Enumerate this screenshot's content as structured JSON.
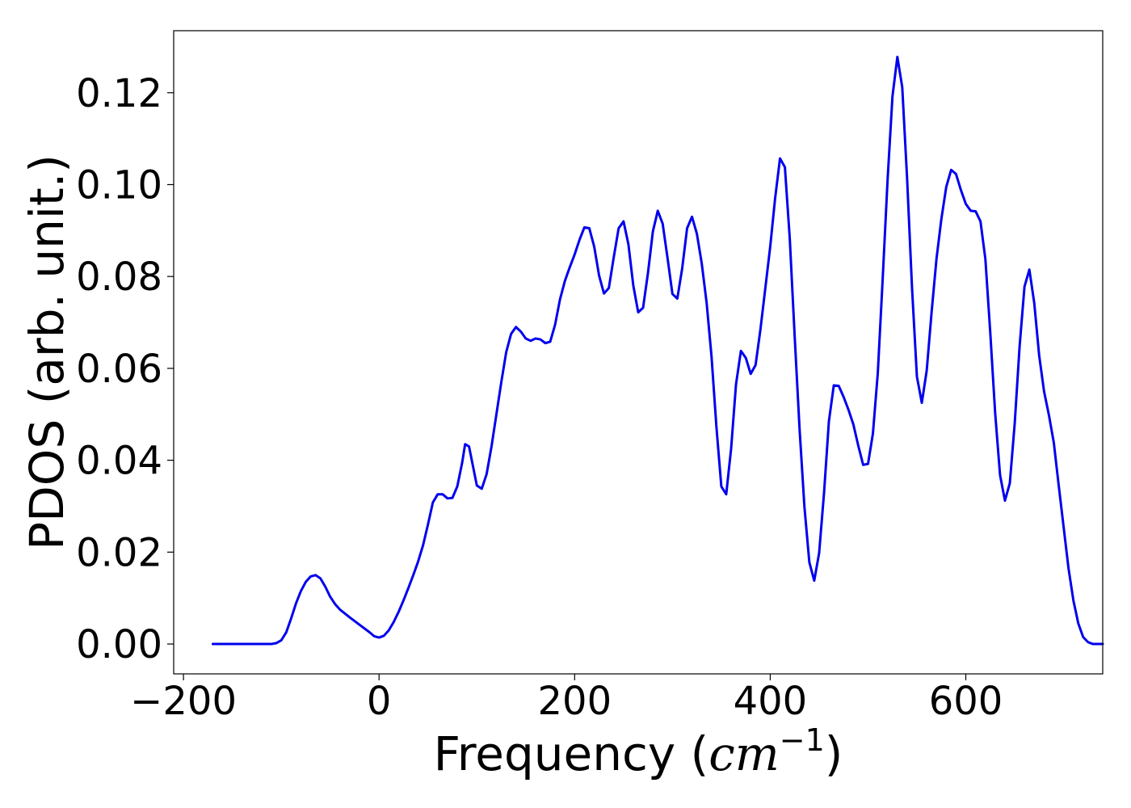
{
  "chart_data": {
    "type": "line",
    "xlabel": {
      "prefix": "Frequency (",
      "unit": "cm",
      "exponent": "−1",
      "suffix": ")"
    },
    "ylabel": "PDOS (arb. unit.)",
    "xlim": [
      -210,
      740
    ],
    "ylim": [
      -0.0065,
      0.1335
    ],
    "x_ticks": [
      -200,
      0,
      200,
      400,
      600
    ],
    "x_tick_labels": [
      "−200",
      "0",
      "200",
      "400",
      "600"
    ],
    "y_ticks": [
      0.0,
      0.02,
      0.04,
      0.06,
      0.08,
      0.1,
      0.12
    ],
    "y_tick_labels": [
      "0.00",
      "0.02",
      "0.04",
      "0.06",
      "0.08",
      "0.10",
      "0.12"
    ],
    "grid": false,
    "series": [
      {
        "color": "#0000ee",
        "points": [
          [
            -170,
            0.0
          ],
          [
            -110,
            0.0
          ],
          [
            -105,
            0.0002
          ],
          [
            -100,
            0.0008
          ],
          [
            -95,
            0.0025
          ],
          [
            -90,
            0.0055
          ],
          [
            -85,
            0.0088
          ],
          [
            -80,
            0.0115
          ],
          [
            -75,
            0.0135
          ],
          [
            -70,
            0.0147
          ],
          [
            -65,
            0.015
          ],
          [
            -60,
            0.0143
          ],
          [
            -55,
            0.0125
          ],
          [
            -50,
            0.0103
          ],
          [
            -45,
            0.0087
          ],
          [
            -40,
            0.0075
          ],
          [
            -30,
            0.0058
          ],
          [
            -20,
            0.0042
          ],
          [
            -10,
            0.0026
          ],
          [
            -5,
            0.0017
          ],
          [
            0,
            0.0014
          ],
          [
            5,
            0.0018
          ],
          [
            10,
            0.003
          ],
          [
            15,
            0.0048
          ],
          [
            20,
            0.007
          ],
          [
            25,
            0.0095
          ],
          [
            30,
            0.0122
          ],
          [
            35,
            0.015
          ],
          [
            40,
            0.018
          ],
          [
            45,
            0.0215
          ],
          [
            50,
            0.026
          ],
          [
            55,
            0.0308
          ],
          [
            60,
            0.0326
          ],
          [
            65,
            0.0326
          ],
          [
            70,
            0.0317
          ],
          [
            75,
            0.0318
          ],
          [
            80,
            0.0343
          ],
          [
            85,
            0.0395
          ],
          [
            88,
            0.0435
          ],
          [
            92,
            0.043
          ],
          [
            100,
            0.0345
          ],
          [
            105,
            0.0338
          ],
          [
            110,
            0.037
          ],
          [
            115,
            0.043
          ],
          [
            120,
            0.05
          ],
          [
            125,
            0.057
          ],
          [
            130,
            0.0635
          ],
          [
            135,
            0.0675
          ],
          [
            140,
            0.069
          ],
          [
            145,
            0.068
          ],
          [
            150,
            0.0665
          ],
          [
            155,
            0.066
          ],
          [
            160,
            0.0665
          ],
          [
            165,
            0.0663
          ],
          [
            170,
            0.0655
          ],
          [
            175,
            0.0658
          ],
          [
            180,
            0.0695
          ],
          [
            185,
            0.075
          ],
          [
            190,
            0.079
          ],
          [
            195,
            0.082
          ],
          [
            200,
            0.0848
          ],
          [
            205,
            0.088
          ],
          [
            210,
            0.0907
          ],
          [
            215,
            0.0905
          ],
          [
            220,
            0.0865
          ],
          [
            225,
            0.0802
          ],
          [
            230,
            0.0763
          ],
          [
            235,
            0.0775
          ],
          [
            240,
            0.0842
          ],
          [
            245,
            0.0905
          ],
          [
            250,
            0.092
          ],
          [
            255,
            0.087
          ],
          [
            260,
            0.078
          ],
          [
            265,
            0.0722
          ],
          [
            270,
            0.0732
          ],
          [
            275,
            0.0808
          ],
          [
            280,
            0.0898
          ],
          [
            285,
            0.0943
          ],
          [
            290,
            0.0915
          ],
          [
            295,
            0.084
          ],
          [
            300,
            0.0762
          ],
          [
            305,
            0.0752
          ],
          [
            310,
            0.0818
          ],
          [
            315,
            0.0905
          ],
          [
            320,
            0.093
          ],
          [
            325,
            0.0893
          ],
          [
            330,
            0.0828
          ],
          [
            335,
            0.0742
          ],
          [
            340,
            0.0625
          ],
          [
            345,
            0.0472
          ],
          [
            350,
            0.0343
          ],
          [
            355,
            0.0326
          ],
          [
            360,
            0.0425
          ],
          [
            365,
            0.0565
          ],
          [
            370,
            0.0638
          ],
          [
            375,
            0.0623
          ],
          [
            380,
            0.0588
          ],
          [
            385,
            0.0607
          ],
          [
            390,
            0.0685
          ],
          [
            395,
            0.0775
          ],
          [
            400,
            0.0865
          ],
          [
            405,
            0.097
          ],
          [
            410,
            0.1057
          ],
          [
            415,
            0.1038
          ],
          [
            420,
            0.0882
          ],
          [
            425,
            0.067
          ],
          [
            430,
            0.0468
          ],
          [
            435,
            0.0298
          ],
          [
            440,
            0.0178
          ],
          [
            445,
            0.0138
          ],
          [
            450,
            0.0198
          ],
          [
            455,
            0.0328
          ],
          [
            460,
            0.0485
          ],
          [
            465,
            0.0563
          ],
          [
            470,
            0.0562
          ],
          [
            475,
            0.0538
          ],
          [
            480,
            0.051
          ],
          [
            485,
            0.0478
          ],
          [
            490,
            0.0432
          ],
          [
            495,
            0.039
          ],
          [
            500,
            0.0392
          ],
          [
            505,
            0.0458
          ],
          [
            510,
            0.059
          ],
          [
            515,
            0.0795
          ],
          [
            520,
            0.101
          ],
          [
            525,
            0.1192
          ],
          [
            530,
            0.1278
          ],
          [
            535,
            0.1212
          ],
          [
            540,
            0.1012
          ],
          [
            545,
            0.0775
          ],
          [
            550,
            0.0582
          ],
          [
            555,
            0.0525
          ],
          [
            560,
            0.0595
          ],
          [
            565,
            0.0722
          ],
          [
            570,
            0.0838
          ],
          [
            575,
            0.0925
          ],
          [
            580,
            0.0995
          ],
          [
            585,
            0.1032
          ],
          [
            590,
            0.1023
          ],
          [
            595,
            0.0988
          ],
          [
            600,
            0.0958
          ],
          [
            605,
            0.0943
          ],
          [
            610,
            0.0942
          ],
          [
            615,
            0.092
          ],
          [
            620,
            0.0838
          ],
          [
            625,
            0.0678
          ],
          [
            630,
            0.0503
          ],
          [
            635,
            0.0368
          ],
          [
            640,
            0.0312
          ],
          [
            645,
            0.035
          ],
          [
            650,
            0.048
          ],
          [
            655,
            0.0648
          ],
          [
            660,
            0.0778
          ],
          [
            665,
            0.0815
          ],
          [
            670,
            0.0742
          ],
          [
            675,
            0.0628
          ],
          [
            680,
            0.055
          ],
          [
            685,
            0.0498
          ],
          [
            690,
            0.0438
          ],
          [
            695,
            0.0345
          ],
          [
            700,
            0.0255
          ],
          [
            705,
            0.0165
          ],
          [
            710,
            0.0095
          ],
          [
            715,
            0.0045
          ],
          [
            720,
            0.0015
          ],
          [
            725,
            0.0004
          ],
          [
            730,
            0.0
          ],
          [
            740,
            0.0
          ]
        ]
      }
    ]
  }
}
